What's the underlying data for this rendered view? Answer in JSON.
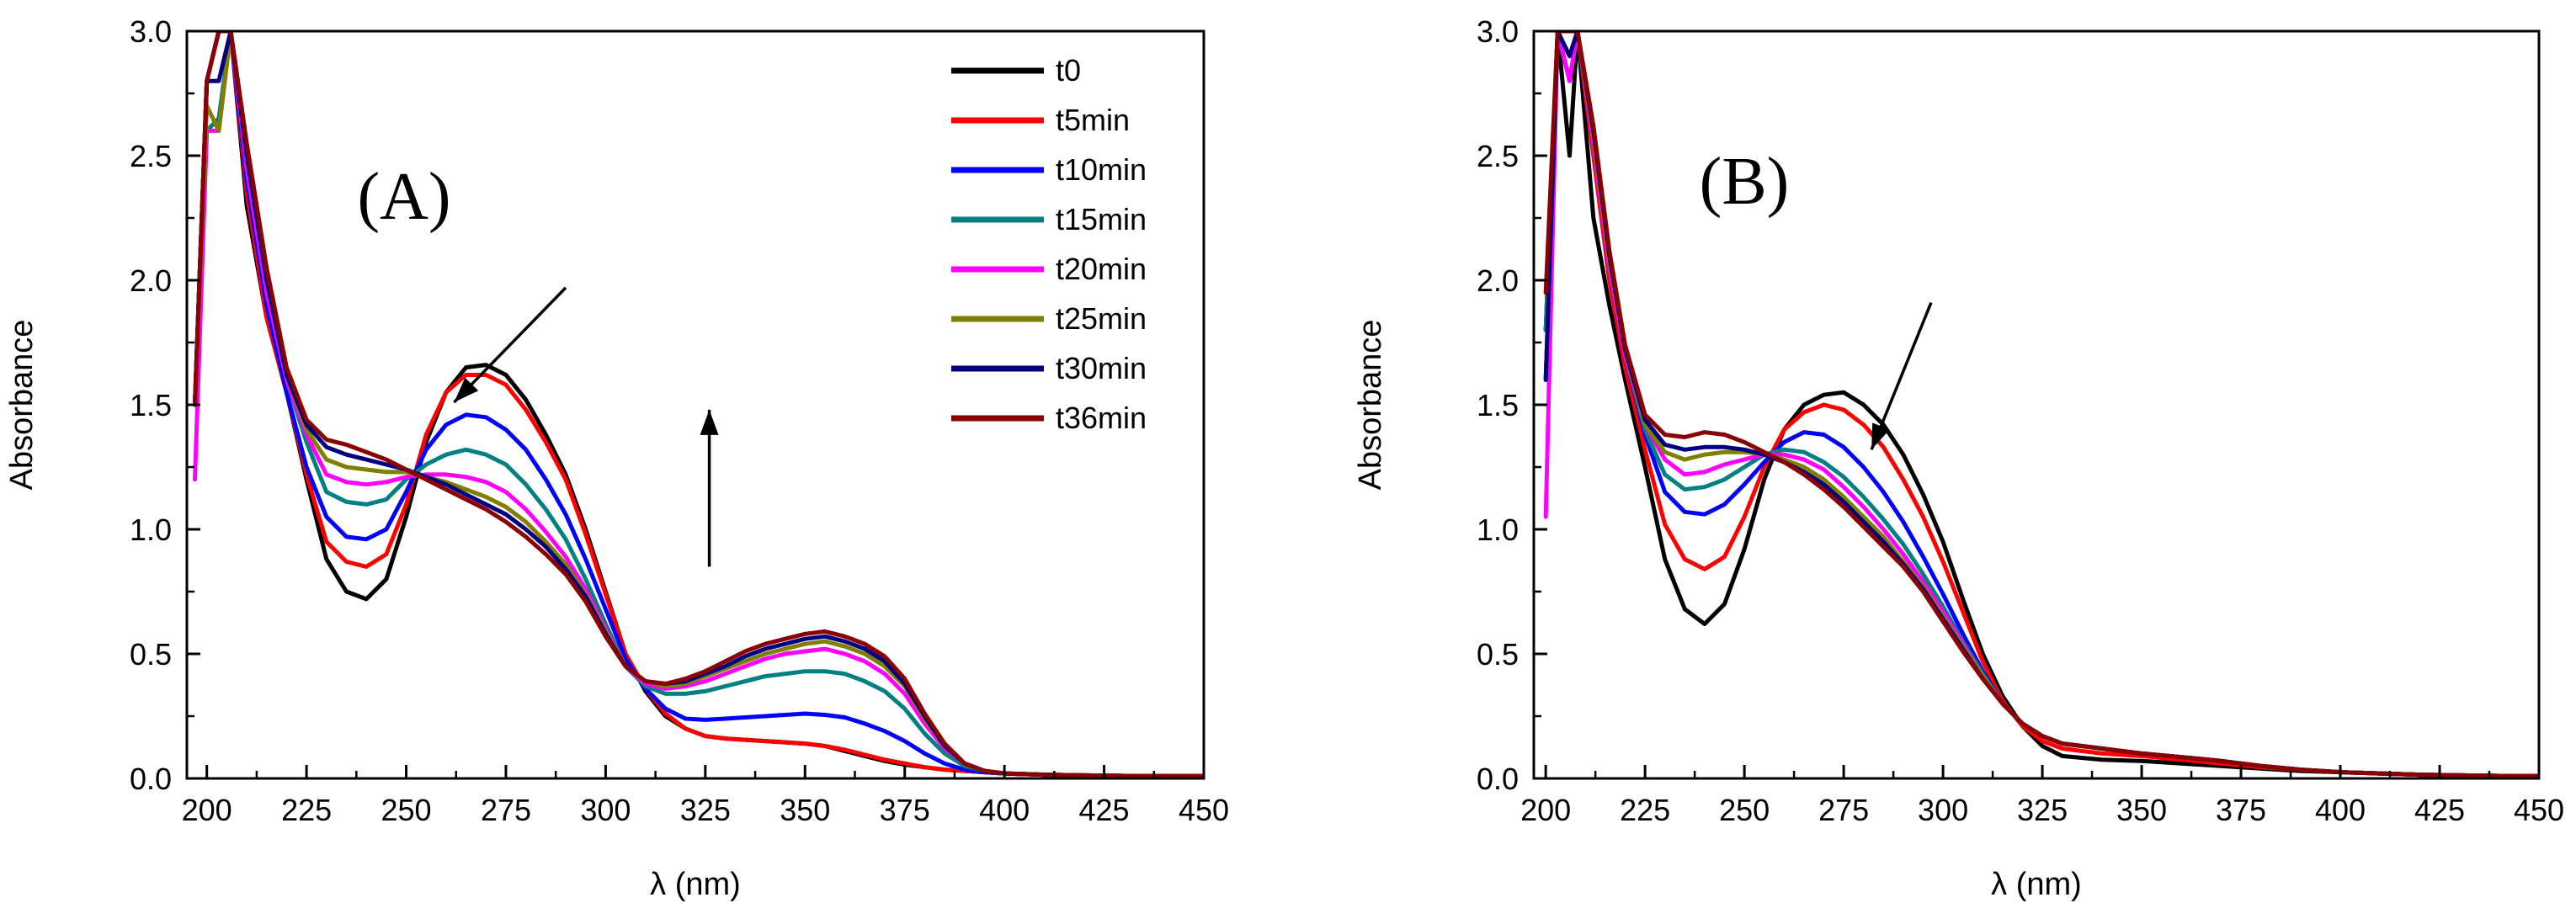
{
  "chart_data": [
    {
      "type": "line",
      "panel_label": "(A)",
      "xlabel": "λ (nm)",
      "ylabel": "Absorbance",
      "xlim": [
        195,
        450
      ],
      "ylim": [
        0,
        3.0
      ],
      "xticks": [
        200,
        225,
        250,
        275,
        300,
        325,
        350,
        375,
        400,
        425,
        450
      ],
      "yticks": [
        0.0,
        0.5,
        1.0,
        1.5,
        2.0,
        2.5,
        3.0
      ],
      "ytick_labels": [
        "0.0",
        "0.5",
        "1.0",
        "1.5",
        "2.0",
        "2.5",
        "3.0"
      ],
      "legend_position": "top-right",
      "annotations": [
        {
          "type": "arrow",
          "from": [
            290,
            1.97
          ],
          "to": [
            262,
            1.51
          ],
          "meaning": "absorbance decreasing at 270 nm"
        },
        {
          "type": "arrow",
          "from": [
            326,
            0.85
          ],
          "to": [
            326,
            1.48
          ],
          "meaning": "absorbance increasing at 355 nm"
        }
      ],
      "x": [
        197,
        200,
        203,
        206,
        210,
        215,
        220,
        225,
        230,
        235,
        240,
        245,
        250,
        255,
        260,
        265,
        270,
        275,
        280,
        285,
        290,
        295,
        300,
        305,
        310,
        315,
        320,
        325,
        330,
        335,
        340,
        345,
        350,
        355,
        360,
        365,
        370,
        375,
        380,
        385,
        390,
        395,
        400,
        410,
        420,
        430,
        440,
        450
      ],
      "series": [
        {
          "name": "t0",
          "color": "#000000",
          "values": [
            1.5,
            2.8,
            3.0,
            3.0,
            2.3,
            1.85,
            1.55,
            1.2,
            0.88,
            0.75,
            0.72,
            0.8,
            1.05,
            1.35,
            1.55,
            1.65,
            1.66,
            1.62,
            1.52,
            1.38,
            1.22,
            1.0,
            0.75,
            0.5,
            0.35,
            0.25,
            0.2,
            0.17,
            0.16,
            0.155,
            0.15,
            0.145,
            0.14,
            0.13,
            0.11,
            0.09,
            0.07,
            0.055,
            0.045,
            0.035,
            0.03,
            0.025,
            0.02,
            0.015,
            0.012,
            0.01,
            0.01,
            0.01
          ]
        },
        {
          "name": "t5min",
          "color": "#ff0000",
          "values": [
            1.5,
            2.8,
            3.0,
            3.0,
            2.35,
            1.85,
            1.55,
            1.22,
            0.95,
            0.87,
            0.85,
            0.9,
            1.1,
            1.38,
            1.55,
            1.62,
            1.62,
            1.58,
            1.48,
            1.35,
            1.2,
            0.98,
            0.74,
            0.5,
            0.36,
            0.26,
            0.2,
            0.17,
            0.16,
            0.155,
            0.15,
            0.145,
            0.14,
            0.13,
            0.115,
            0.095,
            0.075,
            0.06,
            0.045,
            0.035,
            0.03,
            0.025,
            0.02,
            0.015,
            0.012,
            0.01,
            0.01,
            0.01
          ]
        },
        {
          "name": "t10min",
          "color": "#0000ff",
          "values": [
            1.5,
            2.8,
            3.0,
            3.0,
            2.4,
            1.9,
            1.55,
            1.25,
            1.05,
            0.97,
            0.96,
            1.0,
            1.15,
            1.32,
            1.42,
            1.46,
            1.45,
            1.4,
            1.32,
            1.2,
            1.06,
            0.88,
            0.68,
            0.48,
            0.36,
            0.28,
            0.24,
            0.235,
            0.24,
            0.245,
            0.25,
            0.255,
            0.26,
            0.255,
            0.245,
            0.22,
            0.19,
            0.15,
            0.1,
            0.06,
            0.035,
            0.025,
            0.02,
            0.015,
            0.012,
            0.01,
            0.01,
            0.01
          ]
        },
        {
          "name": "t15min",
          "color": "#008080",
          "values": [
            1.5,
            2.6,
            2.65,
            3.0,
            2.45,
            1.95,
            1.6,
            1.35,
            1.15,
            1.11,
            1.1,
            1.12,
            1.2,
            1.26,
            1.3,
            1.32,
            1.3,
            1.26,
            1.18,
            1.08,
            0.96,
            0.8,
            0.62,
            0.45,
            0.37,
            0.34,
            0.34,
            0.35,
            0.37,
            0.39,
            0.41,
            0.42,
            0.43,
            0.43,
            0.42,
            0.39,
            0.35,
            0.28,
            0.18,
            0.1,
            0.05,
            0.03,
            0.02,
            0.015,
            0.012,
            0.01,
            0.01,
            0.01
          ]
        },
        {
          "name": "t20min",
          "color": "#ff00ff",
          "values": [
            1.2,
            2.6,
            2.6,
            3.0,
            2.45,
            1.95,
            1.6,
            1.38,
            1.22,
            1.19,
            1.18,
            1.19,
            1.21,
            1.22,
            1.22,
            1.21,
            1.19,
            1.15,
            1.08,
            0.99,
            0.89,
            0.76,
            0.6,
            0.45,
            0.38,
            0.36,
            0.37,
            0.39,
            0.42,
            0.45,
            0.48,
            0.5,
            0.51,
            0.52,
            0.5,
            0.47,
            0.42,
            0.34,
            0.22,
            0.12,
            0.06,
            0.03,
            0.02,
            0.015,
            0.012,
            0.01,
            0.01,
            0.01
          ]
        },
        {
          "name": "t25min",
          "color": "#808000",
          "values": [
            1.5,
            2.7,
            2.6,
            3.0,
            2.5,
            2.0,
            1.62,
            1.4,
            1.28,
            1.25,
            1.24,
            1.23,
            1.23,
            1.21,
            1.19,
            1.16,
            1.13,
            1.09,
            1.03,
            0.95,
            0.86,
            0.74,
            0.59,
            0.45,
            0.39,
            0.37,
            0.38,
            0.41,
            0.44,
            0.47,
            0.5,
            0.52,
            0.54,
            0.55,
            0.53,
            0.5,
            0.45,
            0.37,
            0.24,
            0.13,
            0.06,
            0.03,
            0.02,
            0.015,
            0.012,
            0.01,
            0.01,
            0.01
          ]
        },
        {
          "name": "t30min",
          "color": "#000080",
          "values": [
            1.5,
            2.8,
            2.8,
            3.0,
            2.5,
            2.0,
            1.62,
            1.42,
            1.33,
            1.3,
            1.28,
            1.26,
            1.24,
            1.21,
            1.18,
            1.14,
            1.1,
            1.06,
            1.0,
            0.93,
            0.84,
            0.73,
            0.58,
            0.45,
            0.39,
            0.38,
            0.39,
            0.42,
            0.45,
            0.49,
            0.52,
            0.54,
            0.56,
            0.57,
            0.55,
            0.52,
            0.47,
            0.38,
            0.25,
            0.13,
            0.06,
            0.03,
            0.02,
            0.015,
            0.012,
            0.01,
            0.01,
            0.01
          ]
        },
        {
          "name": "t36min",
          "color": "#8b0000",
          "values": [
            1.5,
            2.8,
            3.0,
            3.0,
            2.55,
            2.05,
            1.65,
            1.44,
            1.36,
            1.34,
            1.31,
            1.28,
            1.24,
            1.2,
            1.16,
            1.12,
            1.08,
            1.03,
            0.97,
            0.9,
            0.82,
            0.71,
            0.57,
            0.45,
            0.39,
            0.38,
            0.4,
            0.43,
            0.47,
            0.51,
            0.54,
            0.56,
            0.58,
            0.59,
            0.57,
            0.54,
            0.49,
            0.4,
            0.26,
            0.14,
            0.06,
            0.03,
            0.02,
            0.015,
            0.012,
            0.01,
            0.01,
            0.01
          ]
        }
      ]
    },
    {
      "type": "line",
      "panel_label": "(B)",
      "xlabel": "λ (nm)",
      "ylabel": "Absorbance",
      "xlim": [
        197,
        450
      ],
      "ylim": [
        0,
        3.0
      ],
      "xticks": [
        200,
        225,
        250,
        275,
        300,
        325,
        350,
        375,
        400,
        425,
        450
      ],
      "yticks": [
        0.0,
        0.5,
        1.0,
        1.5,
        2.0,
        2.5,
        3.0
      ],
      "ytick_labels": [
        "0.0",
        "0.5",
        "1.0",
        "1.5",
        "2.0",
        "2.5",
        "3.0"
      ],
      "annotations": [
        {
          "type": "arrow",
          "from": [
            297,
            1.91
          ],
          "to": [
            282,
            1.32
          ],
          "meaning": "absorbance decreasing at 275 nm"
        }
      ],
      "x": [
        200,
        203,
        206,
        208,
        212,
        216,
        220,
        225,
        230,
        235,
        240,
        245,
        250,
        255,
        260,
        265,
        270,
        275,
        280,
        285,
        290,
        295,
        300,
        305,
        310,
        315,
        320,
        325,
        330,
        340,
        350,
        360,
        370,
        380,
        390,
        400,
        410,
        420,
        430,
        440,
        450
      ],
      "series": [
        {
          "name": "t0",
          "color": "#000000",
          "values": [
            1.6,
            3.0,
            2.5,
            3.0,
            2.25,
            1.9,
            1.6,
            1.25,
            0.88,
            0.68,
            0.62,
            0.7,
            0.92,
            1.2,
            1.4,
            1.5,
            1.54,
            1.55,
            1.5,
            1.42,
            1.3,
            1.14,
            0.95,
            0.72,
            0.5,
            0.33,
            0.21,
            0.13,
            0.09,
            0.075,
            0.07,
            0.06,
            0.05,
            0.04,
            0.03,
            0.025,
            0.02,
            0.015,
            0.012,
            0.01,
            0.01
          ]
        },
        {
          "name": "t5min",
          "color": "#ff0000",
          "values": [
            1.8,
            3.0,
            2.8,
            3.0,
            2.5,
            2.0,
            1.65,
            1.32,
            1.02,
            0.88,
            0.84,
            0.89,
            1.05,
            1.25,
            1.4,
            1.47,
            1.5,
            1.48,
            1.42,
            1.33,
            1.2,
            1.05,
            0.87,
            0.67,
            0.47,
            0.31,
            0.21,
            0.15,
            0.12,
            0.1,
            0.09,
            0.075,
            0.06,
            0.045,
            0.035,
            0.025,
            0.02,
            0.015,
            0.012,
            0.01,
            0.01
          ]
        },
        {
          "name": "t10min",
          "color": "#0000ff",
          "values": [
            1.8,
            3.0,
            2.9,
            3.0,
            2.55,
            2.05,
            1.7,
            1.38,
            1.15,
            1.07,
            1.06,
            1.1,
            1.18,
            1.27,
            1.35,
            1.39,
            1.38,
            1.33,
            1.25,
            1.15,
            1.03,
            0.89,
            0.74,
            0.58,
            0.43,
            0.3,
            0.22,
            0.17,
            0.14,
            0.12,
            0.1,
            0.085,
            0.07,
            0.05,
            0.035,
            0.025,
            0.02,
            0.015,
            0.012,
            0.01,
            0.01
          ]
        },
        {
          "name": "t15min",
          "color": "#008080",
          "values": [
            1.8,
            3.0,
            2.8,
            3.0,
            2.55,
            2.05,
            1.7,
            1.4,
            1.22,
            1.16,
            1.17,
            1.2,
            1.25,
            1.3,
            1.32,
            1.31,
            1.27,
            1.21,
            1.13,
            1.04,
            0.94,
            0.82,
            0.69,
            0.55,
            0.42,
            0.3,
            0.22,
            0.17,
            0.14,
            0.12,
            0.1,
            0.085,
            0.07,
            0.05,
            0.035,
            0.025,
            0.02,
            0.015,
            0.012,
            0.01,
            0.01
          ]
        },
        {
          "name": "t20min",
          "color": "#ff00ff",
          "values": [
            1.05,
            3.0,
            2.8,
            3.0,
            2.55,
            2.05,
            1.7,
            1.42,
            1.28,
            1.22,
            1.23,
            1.26,
            1.28,
            1.3,
            1.3,
            1.28,
            1.24,
            1.17,
            1.09,
            1.0,
            0.9,
            0.79,
            0.67,
            0.54,
            0.41,
            0.3,
            0.22,
            0.17,
            0.14,
            0.12,
            0.1,
            0.085,
            0.07,
            0.05,
            0.035,
            0.025,
            0.02,
            0.015,
            0.012,
            0.01,
            0.01
          ]
        },
        {
          "name": "t25min",
          "color": "#808000",
          "values": [
            1.6,
            3.0,
            2.9,
            3.0,
            2.58,
            2.08,
            1.72,
            1.42,
            1.31,
            1.28,
            1.3,
            1.31,
            1.31,
            1.3,
            1.28,
            1.25,
            1.2,
            1.13,
            1.05,
            0.97,
            0.87,
            0.77,
            0.65,
            0.53,
            0.41,
            0.3,
            0.22,
            0.17,
            0.14,
            0.12,
            0.1,
            0.085,
            0.07,
            0.05,
            0.035,
            0.025,
            0.02,
            0.015,
            0.012,
            0.01,
            0.01
          ]
        },
        {
          "name": "t30min",
          "color": "#000080",
          "values": [
            1.6,
            3.0,
            2.9,
            3.0,
            2.6,
            2.1,
            1.72,
            1.44,
            1.34,
            1.32,
            1.33,
            1.33,
            1.32,
            1.3,
            1.27,
            1.23,
            1.18,
            1.11,
            1.03,
            0.95,
            0.86,
            0.76,
            0.64,
            0.52,
            0.4,
            0.3,
            0.22,
            0.17,
            0.14,
            0.12,
            0.1,
            0.085,
            0.07,
            0.05,
            0.035,
            0.025,
            0.02,
            0.015,
            0.012,
            0.01,
            0.01
          ]
        },
        {
          "name": "t36min",
          "color": "#8b0000",
          "values": [
            1.95,
            3.0,
            3.0,
            3.0,
            2.62,
            2.12,
            1.74,
            1.46,
            1.38,
            1.37,
            1.39,
            1.38,
            1.35,
            1.31,
            1.27,
            1.22,
            1.16,
            1.09,
            1.01,
            0.93,
            0.85,
            0.75,
            0.63,
            0.51,
            0.4,
            0.3,
            0.22,
            0.17,
            0.14,
            0.12,
            0.1,
            0.085,
            0.07,
            0.05,
            0.035,
            0.025,
            0.02,
            0.015,
            0.012,
            0.01,
            0.01
          ]
        }
      ]
    }
  ]
}
